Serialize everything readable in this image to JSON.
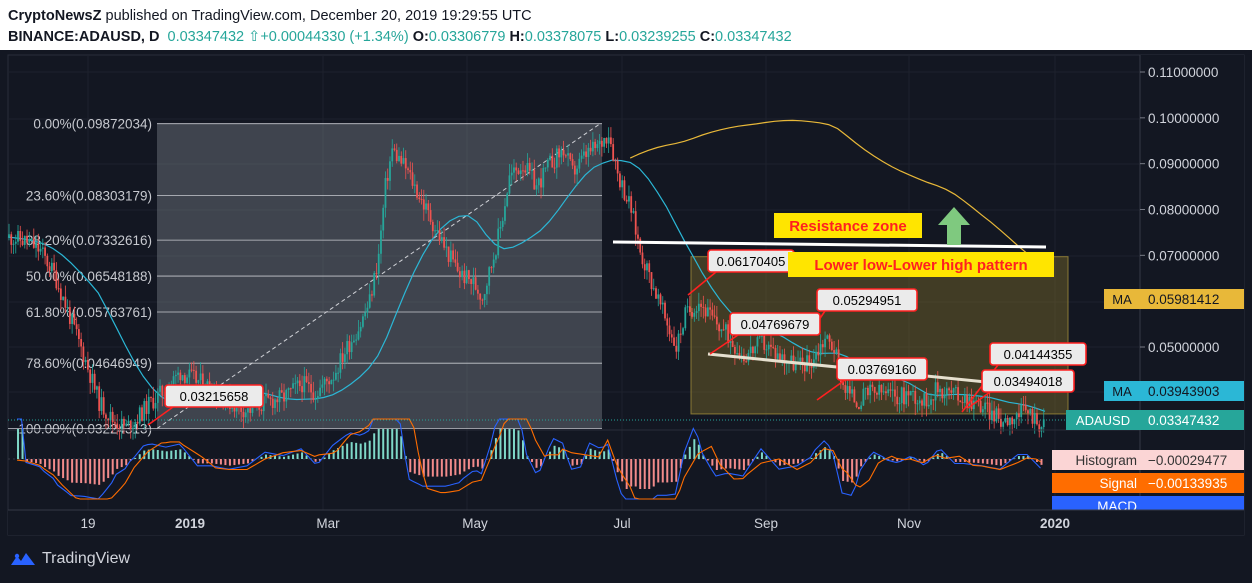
{
  "header": {
    "publisher": "CryptoNewsZ",
    "published_text": "published on TradingView.com, December 20, 2019 19:29:55 UTC",
    "symbol": "BINANCE:ADAUSD, D",
    "last": "0.03347432",
    "change": "+0.00044330 (+1.34%)",
    "o_label": "O:",
    "o_value": "0.03306779",
    "h_label": "H:",
    "h_value": "0.03378075",
    "l_label": "L:",
    "l_value": "0.03239255",
    "c_label": "C:",
    "c_value": "0.03347432"
  },
  "footer": {
    "brand": "TradingView"
  },
  "colors": {
    "background": "#131722",
    "up": "#26a69a",
    "down": "#ef5350",
    "ma_slow": "#e8b839",
    "ma_fast": "#2bb7d6",
    "price_tag": "#26a69a",
    "annotation_red": "#ff2020",
    "annotation_bg": "#ffe500",
    "arrow": "#7fc97f"
  },
  "chart_data": {
    "type": "candlestick",
    "symbol": "BINANCE:ADAUSD",
    "interval": "D",
    "x_labels": [
      "19",
      "2019",
      "Mar",
      "May",
      "Jul",
      "Sep",
      "Nov",
      "2020"
    ],
    "y_ticks": [
      "0.11000000",
      "0.10000000",
      "0.09000000",
      "0.08000000",
      "0.07000000",
      "0.05000000"
    ],
    "ylim": [
      0.0285,
      0.114
    ],
    "fib_levels": [
      {
        "label": "0.00%(0.09872034)",
        "value": 0.09872034
      },
      {
        "label": "23.60%(0.08303179)",
        "value": 0.08303179
      },
      {
        "label": "38.20%(0.07332616)",
        "value": 0.07332616
      },
      {
        "label": "50.00%(0.06548188)",
        "value": 0.06548188
      },
      {
        "label": "61.80%(0.05763761)",
        "value": 0.05763761
      },
      {
        "label": "78.60%(0.04646949)",
        "value": 0.04646949
      },
      {
        "label": "100.00%(0.03224313)",
        "value": 0.03224313
      }
    ],
    "price_tags": [
      {
        "name": "MA",
        "value": "0.05981412"
      },
      {
        "name": "MA",
        "value": "0.03943903"
      },
      {
        "name": "ADAUSD",
        "value": "0.03347432"
      }
    ],
    "callouts": [
      "0.03215658",
      "0.06170405",
      "0.05294951",
      "0.04769679",
      "0.03769160",
      "0.04144355",
      "0.03494018"
    ],
    "annotations": [
      "Resistance zone",
      "Lower low-Lower high pattern"
    ],
    "indicator_labels": [
      {
        "name": "Histogram",
        "value": "−0.00029477"
      },
      {
        "name": "Signal",
        "value": "−0.00133935"
      },
      {
        "name": "MACD",
        "value": ""
      }
    ],
    "price_path": [
      [
        0,
        0.074
      ],
      [
        8,
        0.073
      ],
      [
        14,
        0.071
      ],
      [
        20,
        0.066
      ],
      [
        26,
        0.058
      ],
      [
        34,
        0.047
      ],
      [
        40,
        0.038
      ],
      [
        46,
        0.034
      ],
      [
        52,
        0.0325
      ],
      [
        56,
        0.034
      ],
      [
        62,
        0.0375
      ],
      [
        70,
        0.041
      ],
      [
        76,
        0.0445
      ],
      [
        82,
        0.043
      ],
      [
        90,
        0.041
      ],
      [
        98,
        0.038
      ],
      [
        106,
        0.036
      ],
      [
        114,
        0.038
      ],
      [
        122,
        0.039
      ],
      [
        130,
        0.042
      ],
      [
        136,
        0.04
      ],
      [
        144,
        0.044
      ],
      [
        150,
        0.05
      ],
      [
        156,
        0.055
      ],
      [
        160,
        0.06
      ],
      [
        164,
        0.07
      ],
      [
        167,
        0.085
      ],
      [
        170,
        0.093
      ],
      [
        176,
        0.089
      ],
      [
        182,
        0.083
      ],
      [
        188,
        0.077
      ],
      [
        194,
        0.071
      ],
      [
        200,
        0.066
      ],
      [
        206,
        0.064
      ],
      [
        210,
        0.061
      ],
      [
        214,
        0.068
      ],
      [
        218,
        0.076
      ],
      [
        222,
        0.087
      ],
      [
        228,
        0.09
      ],
      [
        234,
        0.085
      ],
      [
        240,
        0.09
      ],
      [
        246,
        0.093
      ],
      [
        250,
        0.088
      ],
      [
        256,
        0.092
      ],
      [
        262,
        0.094
      ],
      [
        266,
        0.097
      ],
      [
        270,
        0.088
      ],
      [
        276,
        0.08
      ],
      [
        280,
        0.071
      ],
      [
        286,
        0.063
      ],
      [
        292,
        0.055
      ],
      [
        296,
        0.05
      ],
      [
        300,
        0.057
      ],
      [
        306,
        0.06
      ],
      [
        312,
        0.056
      ],
      [
        318,
        0.053
      ],
      [
        326,
        0.048
      ],
      [
        334,
        0.051
      ],
      [
        342,
        0.048
      ],
      [
        350,
        0.046
      ],
      [
        356,
        0.047
      ],
      [
        362,
        0.052
      ],
      [
        366,
        0.05
      ],
      [
        370,
        0.042
      ],
      [
        376,
        0.038
      ],
      [
        382,
        0.04
      ],
      [
        388,
        0.04
      ],
      [
        394,
        0.039
      ],
      [
        400,
        0.04
      ],
      [
        406,
        0.038
      ],
      [
        412,
        0.041
      ],
      [
        418,
        0.04
      ],
      [
        424,
        0.039
      ],
      [
        432,
        0.037
      ],
      [
        440,
        0.034
      ],
      [
        446,
        0.035
      ],
      [
        452,
        0.036
      ],
      [
        458,
        0.033
      ]
    ]
  }
}
